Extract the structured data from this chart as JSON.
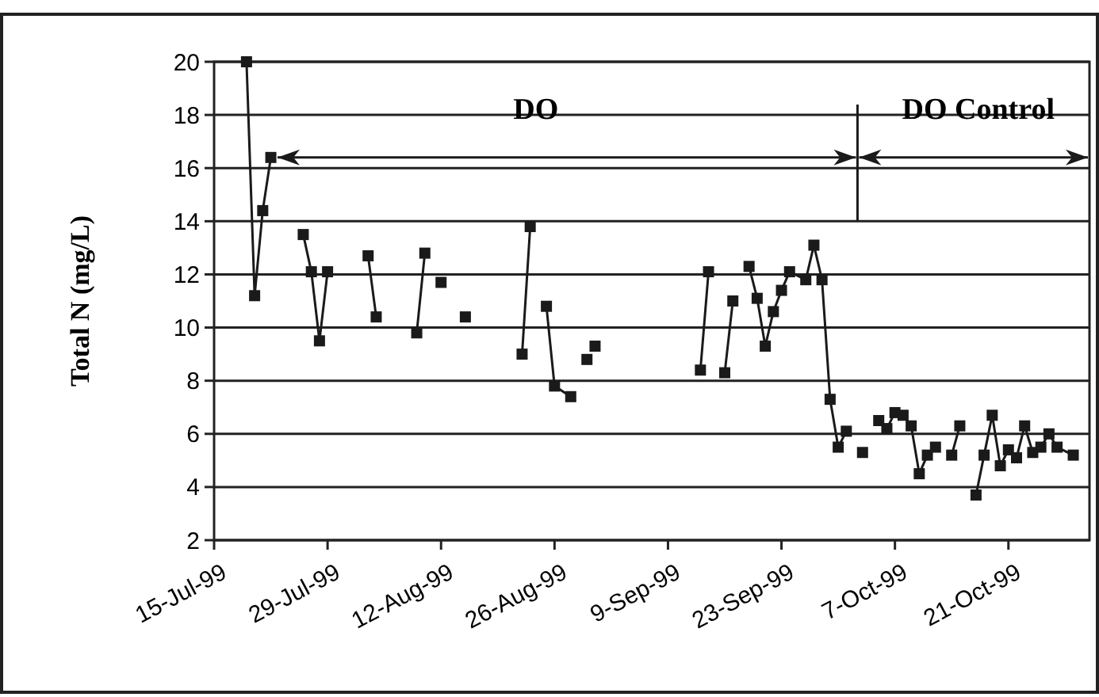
{
  "chart_data": {
    "type": "line",
    "ylabel": "Total N (mg/L)",
    "annotations": [
      "DO",
      "DO Control"
    ],
    "x": [
      "1999-07-19",
      "1999-07-20",
      "1999-07-21",
      "1999-07-22",
      "1999-07-24",
      "1999-07-26",
      "1999-07-27",
      "1999-07-28",
      "1999-07-29",
      "1999-07-31",
      "1999-08-03",
      "1999-08-04",
      "1999-08-06",
      "1999-08-09",
      "1999-08-10",
      "1999-08-11",
      "1999-08-12",
      "1999-08-13",
      "1999-08-15",
      "1999-08-18",
      "1999-08-22",
      "1999-08-23",
      "1999-08-24",
      "1999-08-25",
      "1999-08-26",
      "1999-08-28",
      "1999-08-29",
      "1999-08-30",
      "1999-08-30T12:00",
      "1999-08-31",
      "1999-09-05",
      "1999-09-13",
      "1999-09-14",
      "1999-09-15",
      "1999-09-16",
      "1999-09-17",
      "1999-09-18",
      "1999-09-19",
      "1999-09-20",
      "1999-09-21",
      "1999-09-22",
      "1999-09-23",
      "1999-09-24",
      "1999-09-26",
      "1999-09-27",
      "1999-09-28",
      "1999-09-29",
      "1999-09-30",
      "1999-10-01",
      "1999-10-02",
      "1999-10-03",
      "1999-10-04",
      "1999-10-05",
      "1999-10-06",
      "1999-10-07",
      "1999-10-08",
      "1999-10-09",
      "1999-10-10",
      "1999-10-11",
      "1999-10-12",
      "1999-10-13",
      "1999-10-14",
      "1999-10-15",
      "1999-10-16",
      "1999-10-17",
      "1999-10-18",
      "1999-10-19",
      "1999-10-20",
      "1999-10-21",
      "1999-10-22",
      "1999-10-23",
      "1999-10-24",
      "1999-10-25",
      "1999-10-26",
      "1999-10-27",
      "1999-10-29"
    ],
    "series": [
      {
        "color": "#1a1a1a",
        "values": [
          20,
          11.2,
          14.4,
          16.4,
          null,
          13.5,
          12.1,
          9.5,
          12.1,
          null,
          12.7,
          10.4,
          null,
          9.8,
          12.8,
          null,
          11.7,
          null,
          10.4,
          null,
          9.0,
          13.8,
          null,
          10.8,
          7.8,
          7.4,
          null,
          8.8,
          null,
          9.3,
          null,
          8.4,
          12.1,
          null,
          8.3,
          11.0,
          null,
          12.3,
          11.1,
          9.3,
          10.6,
          11.4,
          12.1,
          11.8,
          13.1,
          11.8,
          7.3,
          5.5,
          6.1,
          null,
          5.3,
          null,
          6.5,
          6.2,
          6.8,
          6.7,
          6.3,
          4.5,
          5.2,
          5.5,
          null,
          5.2,
          6.3,
          null,
          3.7,
          5.2,
          6.7,
          4.8,
          5.4,
          5.1,
          6.3,
          5.3,
          5.5,
          6.0,
          5.5,
          5.2
        ]
      }
    ],
    "ylim": [
      2,
      20
    ],
    "yticks": [
      2,
      4,
      6,
      8,
      10,
      12,
      14,
      16,
      18,
      20
    ],
    "xlim": [
      "1999-07-15",
      "1999-10-31"
    ],
    "xticks": [
      {
        "value": "1999-07-15",
        "label": "15-Jul-99"
      },
      {
        "value": "1999-07-29",
        "label": "29-Jul-99"
      },
      {
        "value": "1999-08-12",
        "label": "12-Aug-99"
      },
      {
        "value": "1999-08-26",
        "label": "26-Aug-99"
      },
      {
        "value": "1999-09-09",
        "label": "9-Sep-99"
      },
      {
        "value": "1999-09-23",
        "label": "23-Sep-99"
      },
      {
        "value": "1999-10-07",
        "label": "7-Oct-99"
      },
      {
        "value": "1999-10-21",
        "label": "21-Oct-99"
      }
    ],
    "grid": "y",
    "marker": "square",
    "line_style": "solid"
  }
}
